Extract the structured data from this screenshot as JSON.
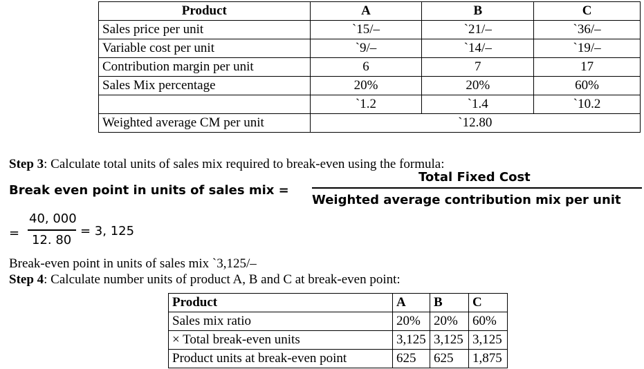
{
  "table1": {
    "headers": [
      "Product",
      "A",
      "B",
      "C"
    ],
    "rows": [
      [
        "Sales price per unit",
        "`15/–",
        "`21/–",
        "`36/–"
      ],
      [
        "Variable cost per unit",
        "`9/–",
        "`14/–",
        "`19/–"
      ],
      [
        "Contribution margin per unit",
        "6",
        "7",
        "17"
      ],
      [
        "Sales Mix percentage",
        "20%",
        "20%",
        "60%"
      ],
      [
        "",
        "`1.2",
        "`1.4",
        "`10.2"
      ]
    ],
    "weighted_label": "Weighted average CM per unit",
    "weighted_value": "`12.80"
  },
  "step3": {
    "label": "Step 3",
    "text": ": Calculate total units of sales mix required to break-even using the formula:"
  },
  "formula": {
    "lhs": "Break even point in units of sales mix =",
    "numerator": "Total Fixed Cost",
    "denominator": "Weighted average contribution mix per unit"
  },
  "calc": {
    "equals": "=",
    "numerator": "40, 000",
    "denominator": "12. 80",
    "result": "= 3, 125"
  },
  "bep_text": "Break-even point in units of sales mix `3,125/–",
  "step4": {
    "label": "Step 4",
    "text": ": Calculate number units of product A, B and C at break-even point:"
  },
  "table2": {
    "headers": [
      "Product",
      "A",
      "B",
      "C"
    ],
    "rows": [
      [
        "Sales mix ratio",
        "20%",
        "20%",
        "60%"
      ],
      [
        "× Total break-even units",
        "3,125",
        "3,125",
        "3,125"
      ],
      [
        "Product units at break-even point",
        "625",
        "625",
        "1,875"
      ]
    ]
  }
}
